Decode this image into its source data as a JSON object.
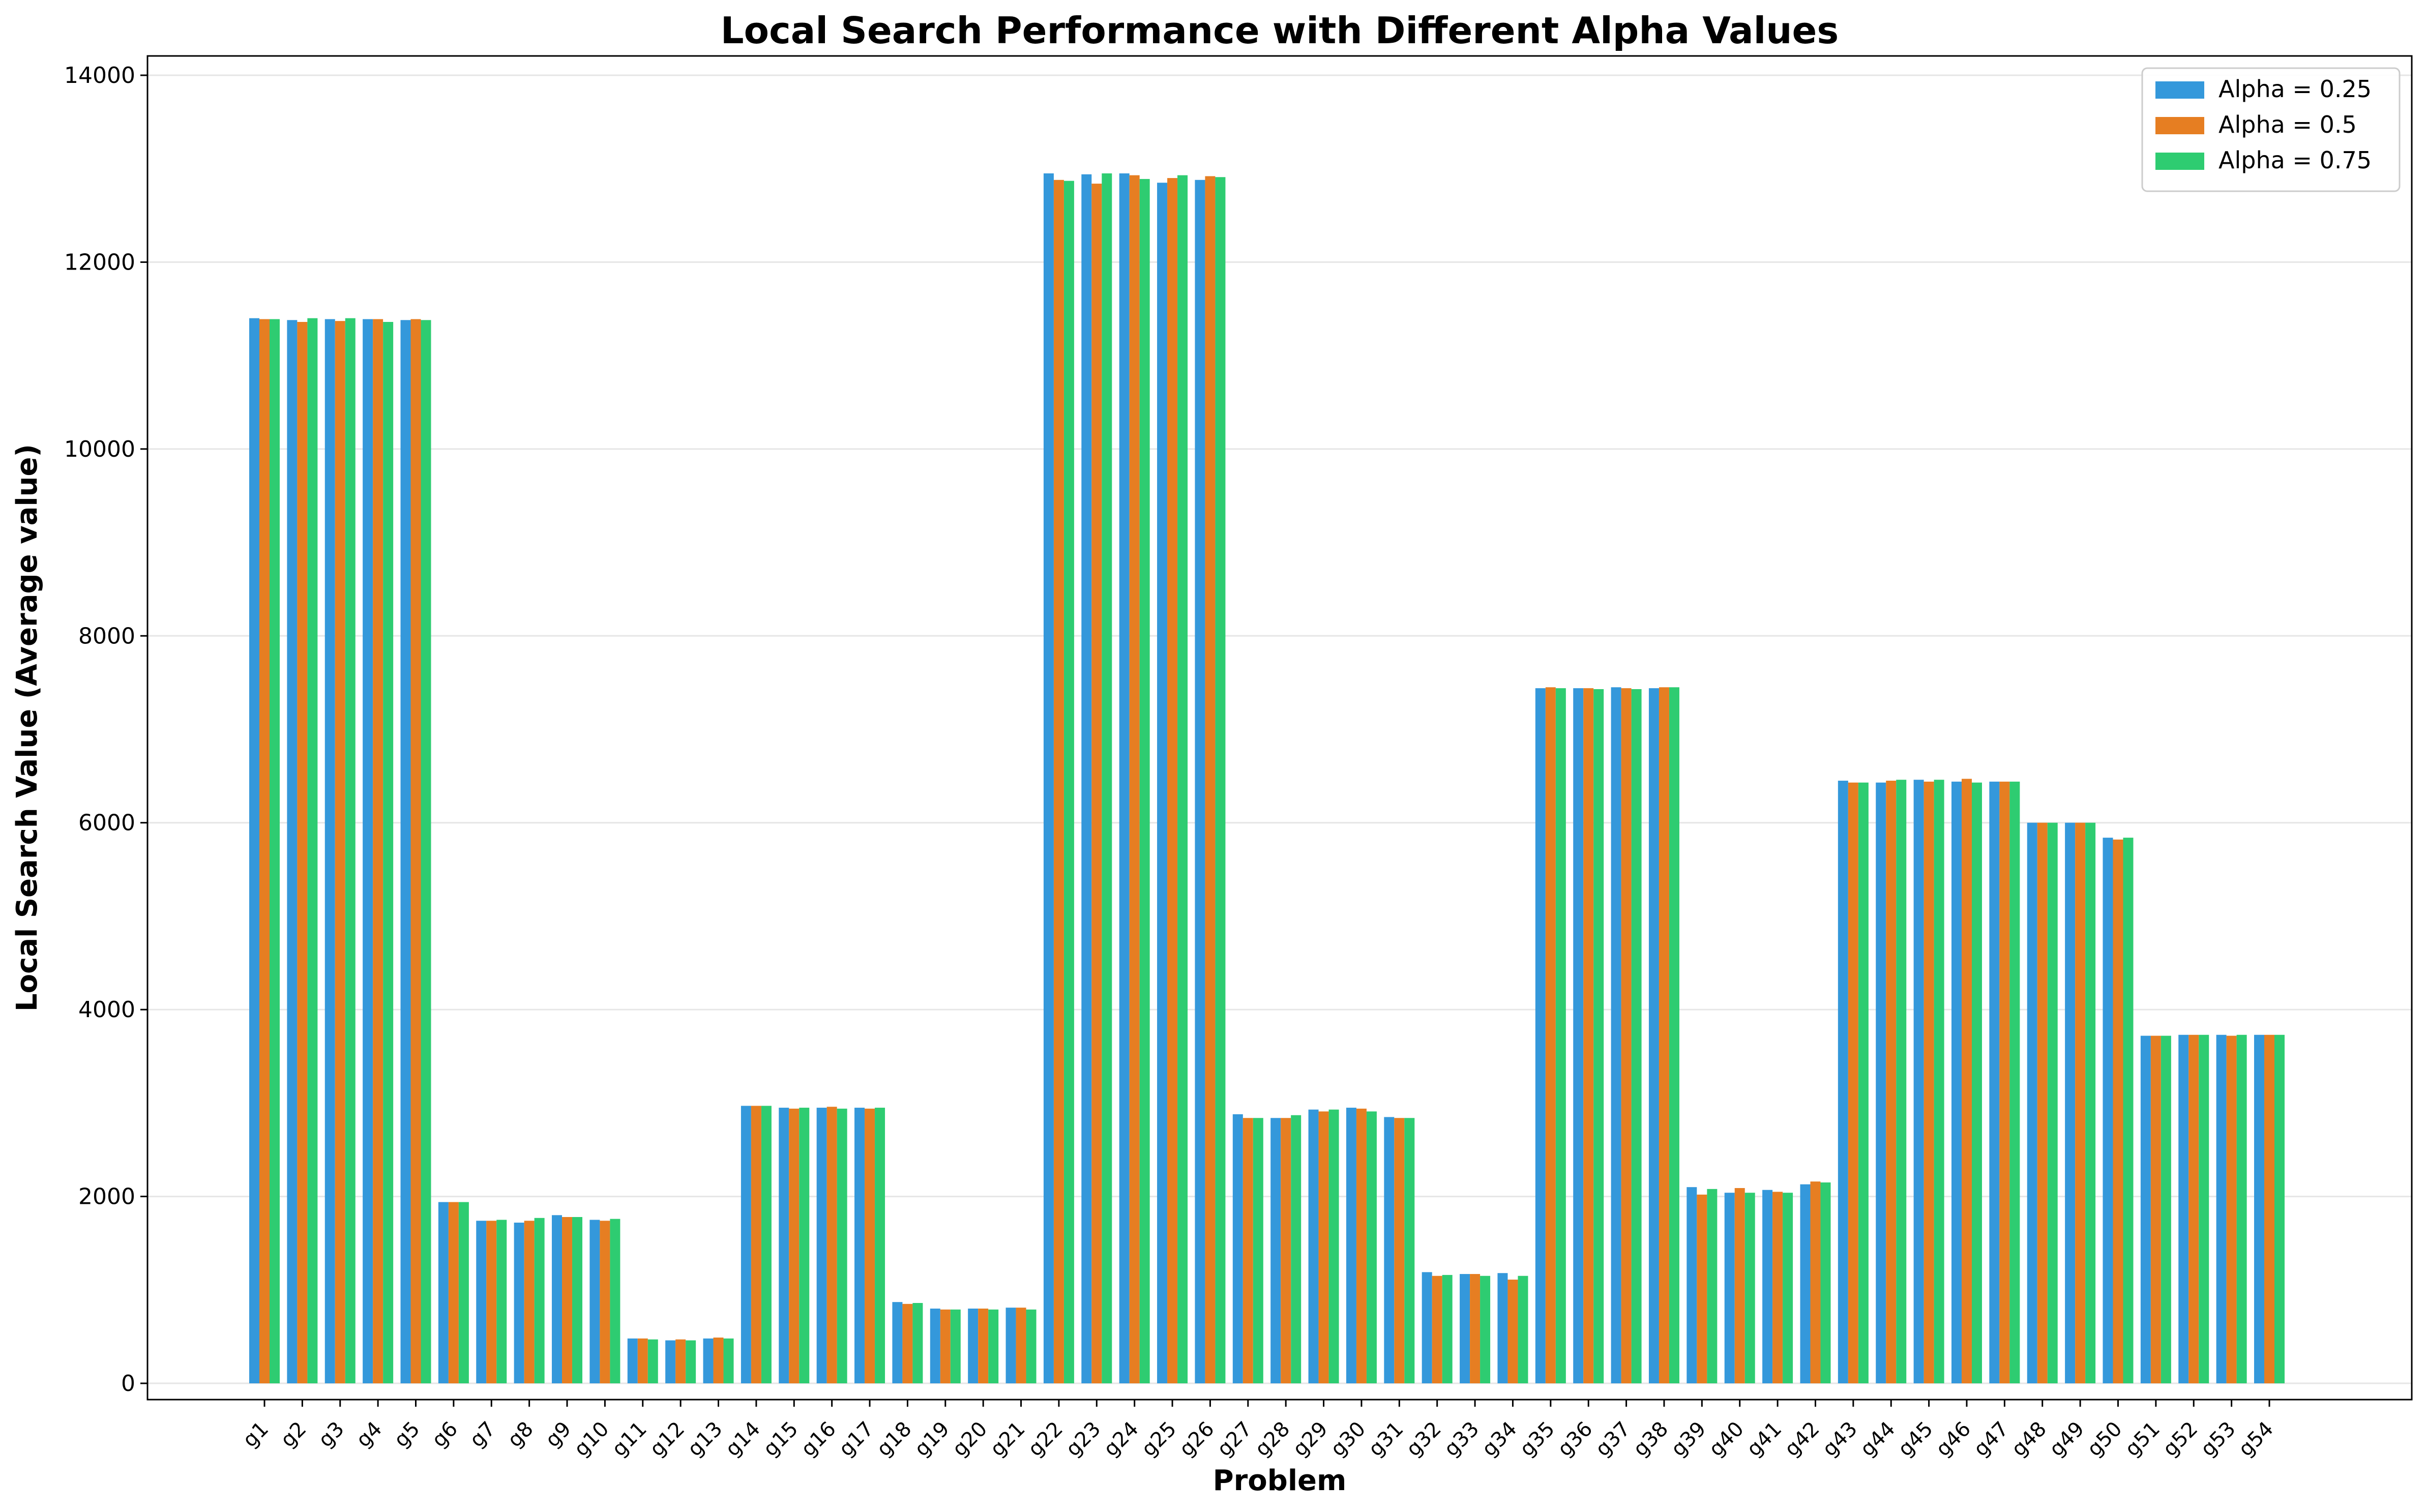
{
  "chart_data": {
    "type": "bar",
    "title": "Local Search Performance with Different Alpha Values",
    "xlabel": "Problem",
    "ylabel": "Local Search Value (Average value)",
    "ylim": [
      0,
      14000
    ],
    "yticks": [
      0,
      2000,
      4000,
      6000,
      8000,
      10000,
      12000,
      14000
    ],
    "grid": "horizontal",
    "legend_position": "top-right",
    "categories": [
      "g1",
      "g2",
      "g3",
      "g4",
      "g5",
      "g6",
      "g7",
      "g8",
      "g9",
      "g10",
      "g11",
      "g12",
      "g13",
      "g14",
      "g15",
      "g16",
      "g17",
      "g18",
      "g19",
      "g20",
      "g21",
      "g22",
      "g23",
      "g24",
      "g25",
      "g26",
      "g27",
      "g28",
      "g29",
      "g30",
      "g31",
      "g32",
      "g33",
      "g34",
      "g35",
      "g36",
      "g37",
      "g38",
      "g39",
      "g40",
      "g41",
      "g42",
      "g43",
      "g44",
      "g45",
      "g46",
      "g47",
      "g48",
      "g49",
      "g50",
      "g51",
      "g52",
      "g53",
      "g54"
    ],
    "series": [
      {
        "name": "Alpha = 0.25",
        "color": "#3498db",
        "values": [
          11400,
          11380,
          11390,
          11390,
          11380,
          1940,
          1740,
          1720,
          1800,
          1750,
          480,
          460,
          480,
          2970,
          2950,
          2950,
          2950,
          870,
          800,
          800,
          810,
          12950,
          12940,
          12950,
          12850,
          12880,
          2880,
          2840,
          2930,
          2950,
          2850,
          1190,
          1170,
          1180,
          7440,
          7440,
          7450,
          7440,
          2100,
          2040,
          2070,
          2130,
          6450,
          6430,
          6460,
          6440,
          6440,
          6000,
          6000,
          5840,
          3720,
          3730,
          3730,
          3730
        ]
      },
      {
        "name": "Alpha = 0.5",
        "color": "#e67e22",
        "values": [
          11390,
          11360,
          11370,
          11390,
          11390,
          1940,
          1740,
          1740,
          1780,
          1740,
          480,
          470,
          490,
          2970,
          2940,
          2960,
          2940,
          850,
          790,
          800,
          810,
          12880,
          12840,
          12930,
          12900,
          12920,
          2840,
          2840,
          2910,
          2940,
          2840,
          1150,
          1170,
          1110,
          7450,
          7440,
          7440,
          7450,
          2020,
          2090,
          2050,
          2160,
          6430,
          6450,
          6440,
          6470,
          6440,
          6000,
          6000,
          5820,
          3720,
          3730,
          3720,
          3730
        ]
      },
      {
        "name": "Alpha = 0.75",
        "color": "#2ecc71",
        "values": [
          11390,
          11400,
          11400,
          11360,
          11380,
          1940,
          1750,
          1770,
          1780,
          1760,
          470,
          460,
          480,
          2970,
          2950,
          2940,
          2950,
          860,
          790,
          790,
          790,
          12870,
          12950,
          12890,
          12930,
          12910,
          2840,
          2870,
          2930,
          2910,
          2840,
          1160,
          1150,
          1150,
          7440,
          7430,
          7430,
          7450,
          2080,
          2040,
          2040,
          2150,
          6430,
          6460,
          6460,
          6430,
          6440,
          6000,
          6000,
          5840,
          3720,
          3730,
          3730,
          3730
        ]
      }
    ]
  }
}
